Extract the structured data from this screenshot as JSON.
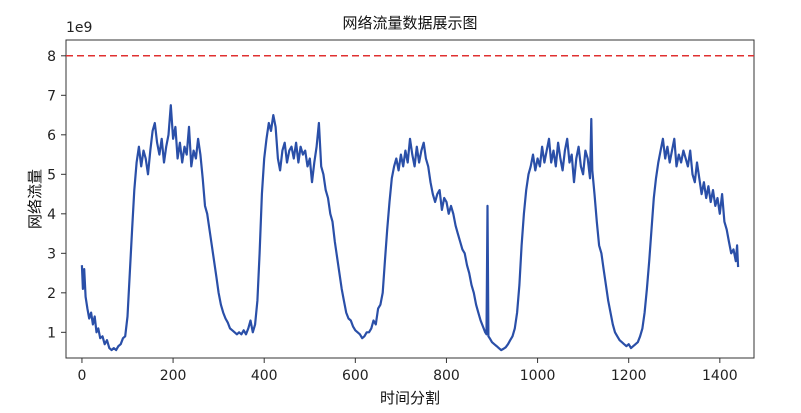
{
  "chart_data": {
    "type": "line",
    "title": "网络流量数据展示图",
    "xlabel": "时间分割",
    "ylabel": "网络流量",
    "y_multiplier_label": "1e9",
    "xlim": [
      -35,
      1475
    ],
    "ylim": [
      0.35,
      8.4
    ],
    "x_ticks": [
      0,
      200,
      400,
      600,
      800,
      1000,
      1200,
      1400
    ],
    "y_ticks": [
      1,
      2,
      3,
      4,
      5,
      6,
      7,
      8
    ],
    "x_tick_labels": [
      "0",
      "200",
      "400",
      "600",
      "800",
      "1000",
      "1200",
      "1400"
    ],
    "y_tick_labels": [
      "1",
      "2",
      "3",
      "4",
      "5",
      "6",
      "7",
      "8"
    ],
    "threshold_line": {
      "y": 8,
      "color": "#e03030",
      "style": "dashed"
    },
    "grid": false,
    "series": [
      {
        "color": "#2a4fa8",
        "points": [
          [
            0,
            2.7
          ],
          [
            2,
            2.1
          ],
          [
            5,
            2.6
          ],
          [
            8,
            1.9
          ],
          [
            12,
            1.6
          ],
          [
            16,
            1.35
          ],
          [
            20,
            1.5
          ],
          [
            24,
            1.2
          ],
          [
            28,
            1.4
          ],
          [
            32,
            1.0
          ],
          [
            36,
            1.1
          ],
          [
            40,
            0.85
          ],
          [
            45,
            0.9
          ],
          [
            50,
            0.7
          ],
          [
            55,
            0.8
          ],
          [
            60,
            0.6
          ],
          [
            65,
            0.55
          ],
          [
            70,
            0.6
          ],
          [
            75,
            0.55
          ],
          [
            80,
            0.65
          ],
          [
            85,
            0.7
          ],
          [
            90,
            0.85
          ],
          [
            95,
            0.9
          ],
          [
            100,
            1.4
          ],
          [
            105,
            2.5
          ],
          [
            110,
            3.6
          ],
          [
            115,
            4.6
          ],
          [
            120,
            5.3
          ],
          [
            125,
            5.7
          ],
          [
            130,
            5.2
          ],
          [
            135,
            5.6
          ],
          [
            140,
            5.4
          ],
          [
            145,
            5.0
          ],
          [
            150,
            5.6
          ],
          [
            155,
            6.1
          ],
          [
            160,
            6.3
          ],
          [
            165,
            5.8
          ],
          [
            170,
            5.5
          ],
          [
            175,
            5.9
          ],
          [
            180,
            5.3
          ],
          [
            185,
            5.7
          ],
          [
            190,
            6.0
          ],
          [
            195,
            6.75
          ],
          [
            200,
            5.9
          ],
          [
            205,
            6.2
          ],
          [
            210,
            5.4
          ],
          [
            215,
            5.8
          ],
          [
            220,
            5.3
          ],
          [
            225,
            5.7
          ],
          [
            230,
            5.5
          ],
          [
            235,
            6.2
          ],
          [
            240,
            5.2
          ],
          [
            245,
            5.6
          ],
          [
            250,
            5.4
          ],
          [
            255,
            5.9
          ],
          [
            260,
            5.5
          ],
          [
            265,
            4.9
          ],
          [
            270,
            4.2
          ],
          [
            275,
            4.0
          ],
          [
            280,
            3.6
          ],
          [
            285,
            3.2
          ],
          [
            290,
            2.8
          ],
          [
            295,
            2.4
          ],
          [
            300,
            2.0
          ],
          [
            305,
            1.7
          ],
          [
            310,
            1.5
          ],
          [
            315,
            1.35
          ],
          [
            320,
            1.25
          ],
          [
            325,
            1.1
          ],
          [
            330,
            1.05
          ],
          [
            335,
            1.0
          ],
          [
            340,
            0.95
          ],
          [
            345,
            1.0
          ],
          [
            350,
            0.95
          ],
          [
            355,
            1.05
          ],
          [
            360,
            0.95
          ],
          [
            365,
            1.1
          ],
          [
            370,
            1.3
          ],
          [
            375,
            1.0
          ],
          [
            380,
            1.2
          ],
          [
            385,
            1.8
          ],
          [
            390,
            3.0
          ],
          [
            395,
            4.5
          ],
          [
            400,
            5.4
          ],
          [
            405,
            5.9
          ],
          [
            410,
            6.3
          ],
          [
            415,
            6.1
          ],
          [
            420,
            6.5
          ],
          [
            425,
            6.2
          ],
          [
            430,
            5.4
          ],
          [
            435,
            5.1
          ],
          [
            440,
            5.6
          ],
          [
            445,
            5.8
          ],
          [
            450,
            5.3
          ],
          [
            455,
            5.6
          ],
          [
            460,
            5.7
          ],
          [
            465,
            5.4
          ],
          [
            470,
            5.8
          ],
          [
            475,
            5.3
          ],
          [
            480,
            5.7
          ],
          [
            485,
            5.5
          ],
          [
            490,
            5.6
          ],
          [
            495,
            5.2
          ],
          [
            500,
            5.4
          ],
          [
            505,
            4.8
          ],
          [
            510,
            5.3
          ],
          [
            515,
            5.7
          ],
          [
            520,
            6.3
          ],
          [
            525,
            5.2
          ],
          [
            530,
            5.0
          ],
          [
            535,
            4.6
          ],
          [
            540,
            4.4
          ],
          [
            545,
            4.0
          ],
          [
            550,
            3.8
          ],
          [
            555,
            3.3
          ],
          [
            560,
            2.9
          ],
          [
            565,
            2.5
          ],
          [
            570,
            2.1
          ],
          [
            575,
            1.8
          ],
          [
            580,
            1.5
          ],
          [
            585,
            1.35
          ],
          [
            590,
            1.3
          ],
          [
            595,
            1.15
          ],
          [
            600,
            1.05
          ],
          [
            605,
            1.0
          ],
          [
            610,
            0.95
          ],
          [
            615,
            0.85
          ],
          [
            620,
            0.9
          ],
          [
            625,
            1.0
          ],
          [
            630,
            1.0
          ],
          [
            635,
            1.1
          ],
          [
            640,
            1.3
          ],
          [
            645,
            1.2
          ],
          [
            650,
            1.6
          ],
          [
            655,
            1.7
          ],
          [
            660,
            2.0
          ],
          [
            665,
            2.8
          ],
          [
            670,
            3.6
          ],
          [
            675,
            4.3
          ],
          [
            680,
            4.9
          ],
          [
            685,
            5.2
          ],
          [
            690,
            5.4
          ],
          [
            695,
            5.1
          ],
          [
            700,
            5.5
          ],
          [
            705,
            5.2
          ],
          [
            710,
            5.6
          ],
          [
            715,
            5.3
          ],
          [
            720,
            5.9
          ],
          [
            725,
            5.5
          ],
          [
            730,
            5.2
          ],
          [
            735,
            5.7
          ],
          [
            740,
            5.3
          ],
          [
            745,
            5.6
          ],
          [
            750,
            5.8
          ],
          [
            755,
            5.4
          ],
          [
            760,
            5.2
          ],
          [
            765,
            4.8
          ],
          [
            770,
            4.5
          ],
          [
            775,
            4.3
          ],
          [
            780,
            4.5
          ],
          [
            785,
            4.6
          ],
          [
            790,
            4.1
          ],
          [
            795,
            4.4
          ],
          [
            800,
            4.3
          ],
          [
            805,
            4.0
          ],
          [
            810,
            4.2
          ],
          [
            815,
            4.0
          ],
          [
            820,
            3.7
          ],
          [
            825,
            3.5
          ],
          [
            830,
            3.3
          ],
          [
            835,
            3.1
          ],
          [
            840,
            3.0
          ],
          [
            845,
            2.7
          ],
          [
            850,
            2.5
          ],
          [
            855,
            2.2
          ],
          [
            860,
            2.0
          ],
          [
            865,
            1.7
          ],
          [
            870,
            1.5
          ],
          [
            875,
            1.3
          ],
          [
            880,
            1.15
          ],
          [
            885,
            1.0
          ],
          [
            888,
            0.95
          ],
          [
            890,
            4.2
          ],
          [
            892,
            0.9
          ],
          [
            895,
            0.85
          ],
          [
            900,
            0.75
          ],
          [
            905,
            0.7
          ],
          [
            910,
            0.65
          ],
          [
            915,
            0.6
          ],
          [
            920,
            0.55
          ],
          [
            925,
            0.58
          ],
          [
            930,
            0.62
          ],
          [
            935,
            0.7
          ],
          [
            940,
            0.8
          ],
          [
            945,
            0.9
          ],
          [
            950,
            1.1
          ],
          [
            955,
            1.5
          ],
          [
            960,
            2.2
          ],
          [
            965,
            3.2
          ],
          [
            970,
            4.0
          ],
          [
            975,
            4.6
          ],
          [
            980,
            5.0
          ],
          [
            985,
            5.2
          ],
          [
            990,
            5.5
          ],
          [
            995,
            5.1
          ],
          [
            1000,
            5.4
          ],
          [
            1005,
            5.2
          ],
          [
            1010,
            5.7
          ],
          [
            1015,
            5.3
          ],
          [
            1020,
            5.6
          ],
          [
            1025,
            5.9
          ],
          [
            1030,
            5.3
          ],
          [
            1035,
            5.6
          ],
          [
            1040,
            5.2
          ],
          [
            1045,
            5.8
          ],
          [
            1050,
            5.4
          ],
          [
            1055,
            5.1
          ],
          [
            1060,
            5.6
          ],
          [
            1065,
            5.9
          ],
          [
            1070,
            5.3
          ],
          [
            1075,
            5.5
          ],
          [
            1080,
            4.8
          ],
          [
            1085,
            5.4
          ],
          [
            1090,
            5.7
          ],
          [
            1095,
            5.2
          ],
          [
            1100,
            5.0
          ],
          [
            1105,
            5.6
          ],
          [
            1110,
            5.4
          ],
          [
            1115,
            4.9
          ],
          [
            1118,
            6.4
          ],
          [
            1120,
            5.1
          ],
          [
            1125,
            4.5
          ],
          [
            1130,
            3.8
          ],
          [
            1135,
            3.2
          ],
          [
            1140,
            3.0
          ],
          [
            1145,
            2.6
          ],
          [
            1150,
            2.2
          ],
          [
            1155,
            1.8
          ],
          [
            1160,
            1.5
          ],
          [
            1165,
            1.2
          ],
          [
            1170,
            1.0
          ],
          [
            1175,
            0.9
          ],
          [
            1180,
            0.8
          ],
          [
            1185,
            0.75
          ],
          [
            1190,
            0.7
          ],
          [
            1195,
            0.65
          ],
          [
            1200,
            0.7
          ],
          [
            1205,
            0.6
          ],
          [
            1210,
            0.65
          ],
          [
            1215,
            0.7
          ],
          [
            1220,
            0.75
          ],
          [
            1225,
            0.9
          ],
          [
            1230,
            1.1
          ],
          [
            1235,
            1.5
          ],
          [
            1240,
            2.1
          ],
          [
            1245,
            2.8
          ],
          [
            1250,
            3.6
          ],
          [
            1255,
            4.4
          ],
          [
            1260,
            4.9
          ],
          [
            1265,
            5.3
          ],
          [
            1270,
            5.6
          ],
          [
            1275,
            5.9
          ],
          [
            1280,
            5.4
          ],
          [
            1285,
            5.7
          ],
          [
            1290,
            5.3
          ],
          [
            1295,
            5.6
          ],
          [
            1300,
            5.9
          ],
          [
            1305,
            5.2
          ],
          [
            1310,
            5.5
          ],
          [
            1315,
            5.3
          ],
          [
            1320,
            5.6
          ],
          [
            1325,
            5.4
          ],
          [
            1330,
            5.2
          ],
          [
            1335,
            5.6
          ],
          [
            1340,
            5.0
          ],
          [
            1345,
            4.8
          ],
          [
            1350,
            5.3
          ],
          [
            1355,
            4.9
          ],
          [
            1360,
            4.5
          ],
          [
            1365,
            4.8
          ],
          [
            1370,
            4.4
          ],
          [
            1375,
            4.7
          ],
          [
            1380,
            4.3
          ],
          [
            1385,
            4.6
          ],
          [
            1390,
            4.2
          ],
          [
            1395,
            4.4
          ],
          [
            1400,
            4.0
          ],
          [
            1405,
            4.5
          ],
          [
            1410,
            3.8
          ],
          [
            1415,
            3.6
          ],
          [
            1420,
            3.3
          ],
          [
            1425,
            3.0
          ],
          [
            1430,
            3.1
          ],
          [
            1435,
            2.8
          ],
          [
            1438,
            3.2
          ],
          [
            1440,
            2.65
          ]
        ]
      }
    ]
  }
}
